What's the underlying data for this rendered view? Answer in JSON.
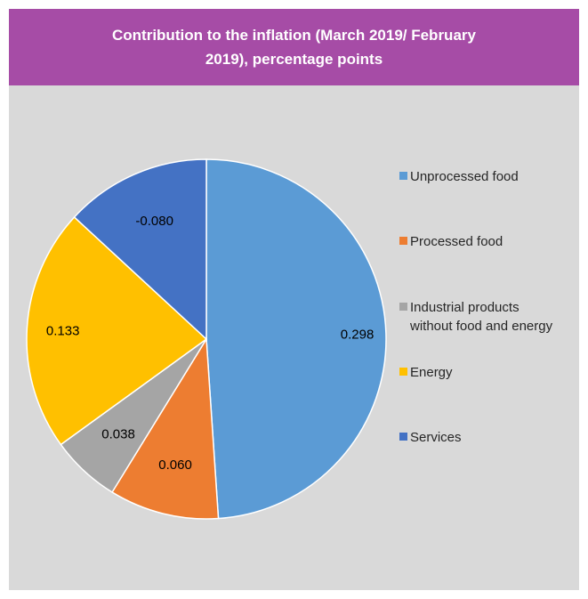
{
  "chart_data": {
    "type": "pie",
    "title": "Contribution to the inflation (March 2019/ February 2019), percentage points",
    "categories": [
      "Unprocessed food",
      "Processed food",
      "Industrial products without food and energy",
      "Energy",
      "Services"
    ],
    "values": [
      0.298,
      0.06,
      0.038,
      0.133,
      -0.08
    ],
    "data_labels": [
      "0.298",
      "0.060",
      "0.038",
      "0.133",
      "-0.080"
    ],
    "colors": [
      "#5b9bd5",
      "#ed7d31",
      "#a5a5a5",
      "#ffc000",
      "#4472c4"
    ],
    "legend_lines": [
      [
        "Unprocessed food"
      ],
      [
        "Processed food"
      ],
      [
        "Industrial products",
        "without food and energy"
      ],
      [
        "Energy"
      ],
      [
        "Services"
      ]
    ],
    "legend_position": "right",
    "start_angle_deg": 0,
    "direction": "clockwise"
  }
}
